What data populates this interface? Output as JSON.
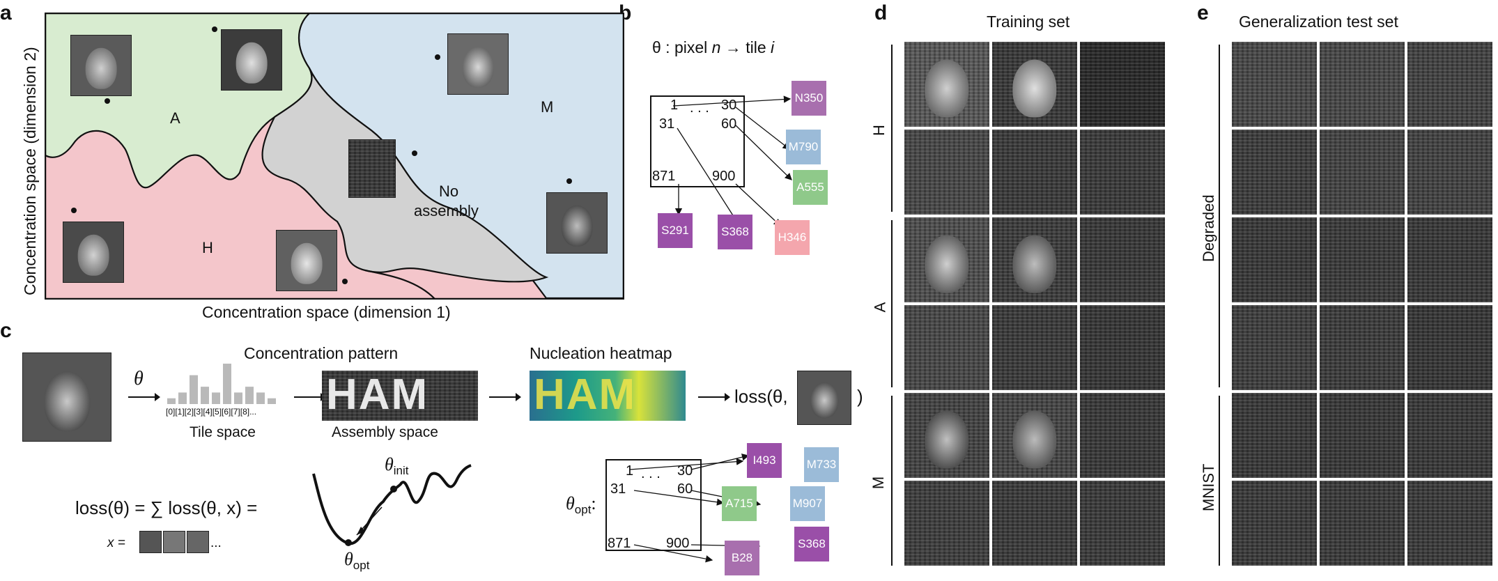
{
  "panel_labels": {
    "a": "a",
    "b": "b",
    "c": "c",
    "d": "d",
    "e": "e"
  },
  "panel_a": {
    "x_axis_label": "Concentration space (dimension 1)",
    "y_axis_label": "Concentration space (dimension 2)",
    "regions": {
      "A": "A",
      "M": "M",
      "H": "H",
      "no_assembly_line1": "No",
      "no_assembly_line2": "assembly"
    },
    "colors": {
      "A": "#d8ecd0",
      "M": "#d3e3ef",
      "H": "#f4c6cb",
      "no_assembly": "#d2d2d2"
    }
  },
  "panel_b": {
    "map_prefix": "θ : pixel ",
    "map_n": "n",
    "map_arrow": " → tile ",
    "map_i": "i",
    "grid_labels": {
      "r1a": "1",
      "dots": ". . .",
      "r1b": "30",
      "r2a": "31",
      "r2b": "60",
      "r3a": "871",
      "r3b": "900"
    },
    "tiles": [
      {
        "label": "N350",
        "color": "#a86fae"
      },
      {
        "label": "M790",
        "color": "#9bbbd8"
      },
      {
        "label": "A555",
        "color": "#8fc98a"
      },
      {
        "label": "S291",
        "color": "#9a4fa8"
      },
      {
        "label": "S368",
        "color": "#9a4fa8"
      },
      {
        "label": "H346",
        "color": "#f4a6ad"
      }
    ]
  },
  "panel_c": {
    "theta": "θ",
    "concentration_pattern": "Concentration pattern",
    "tile_space": "Tile space",
    "tile_indices": "[0][1][2][3][4][5][6][7][8]...",
    "assembly_space": "Assembly space",
    "nucleation_heatmap": "Nucleation heatmap",
    "ham_text": "HAM",
    "loss_prefix": "loss(θ,",
    "loss_suffix": ")",
    "loss_eq": "loss(θ) = ∑ loss(θ, x)   =",
    "x_eq": "x =",
    "x_dots": "...",
    "theta_init": "θ",
    "init_sub": "init",
    "theta_opt": "θ",
    "opt_sub": "opt",
    "theta_opt_label": "θ",
    "theta_opt_label_sub": "opt",
    "colon": ":",
    "bar_values": [
      1,
      2,
      5,
      3,
      2,
      7,
      2,
      3,
      2,
      1
    ],
    "grid_labels": {
      "r1a": "1",
      "dots": ". . .",
      "r1b": "30",
      "r2a": "31",
      "r2b": "60",
      "r3a": "871",
      "r3b": "900"
    },
    "tiles": [
      {
        "label": "I493",
        "color": "#9a4fa8"
      },
      {
        "label": "M733",
        "color": "#9bbbd8"
      },
      {
        "label": "A715",
        "color": "#8fc98a"
      },
      {
        "label": "M907",
        "color": "#9bbbd8"
      },
      {
        "label": "B28",
        "color": "#a86fae"
      },
      {
        "label": "S368",
        "color": "#9a4fa8"
      }
    ]
  },
  "panel_d": {
    "title": "Training set",
    "row_labels": {
      "H": "H",
      "A": "A",
      "M": "M"
    }
  },
  "panel_e": {
    "title": "Generalization test set",
    "row_labels": {
      "degraded": "Degraded",
      "mnist": "MNIST"
    }
  }
}
